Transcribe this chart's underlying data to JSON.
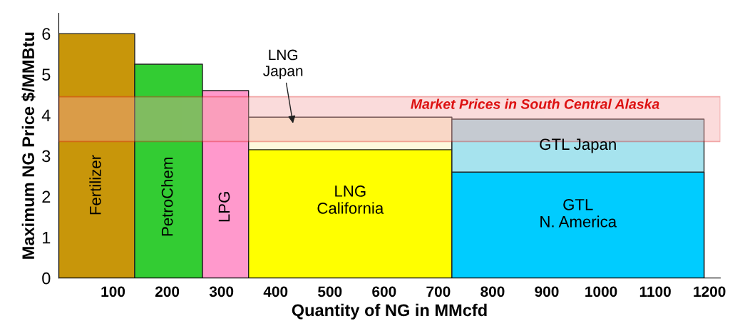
{
  "chart_data": {
    "type": "area",
    "xlabel": "Quantity of NG in MMcfd",
    "ylabel": "Maximum NG Price $/MMBtu",
    "xlim": [
      0,
      1220
    ],
    "xticks": [
      100,
      200,
      300,
      400,
      500,
      600,
      700,
      800,
      900,
      1000,
      1100,
      1200
    ],
    "ylim": [
      0,
      6.5
    ],
    "yticks": [
      0,
      1,
      2,
      3,
      4,
      5,
      6
    ],
    "grid": false,
    "series": [
      {
        "name": "Fertilizer",
        "color": "#c8960a",
        "x": [
          0,
          140
        ],
        "values": [
          6.0,
          6.0
        ]
      },
      {
        "name": "PetroChem",
        "color": "#33cc33",
        "x": [
          140,
          265
        ],
        "values": [
          5.25,
          5.25
        ]
      },
      {
        "name": "LPG",
        "color": "#ff99cc",
        "x": [
          265,
          350
        ],
        "values": [
          4.6,
          4.6
        ]
      },
      {
        "name": "LNG\nJapan",
        "color": "#fdf8dc",
        "x": [
          350,
          725
        ],
        "values": [
          3.95,
          3.95
        ]
      },
      {
        "name": "LNG\nCalifornia",
        "color": "#ffff00",
        "x": [
          350,
          725
        ],
        "values": [
          3.15,
          3.15
        ]
      },
      {
        "name": "GTL Japan",
        "color": "#a6e3ee",
        "x": [
          725,
          1190
        ],
        "values": [
          3.9,
          3.9
        ]
      },
      {
        "name": "GTL\nN. America",
        "color": "#00ccff",
        "x": [
          725,
          1190
        ],
        "values": [
          2.6,
          2.6
        ]
      }
    ],
    "bands": [
      {
        "axis": "y",
        "from": 3.35,
        "to": 4.45,
        "label": "Market Prices in South Central Alaska",
        "color": "#f4a6a6"
      }
    ]
  }
}
